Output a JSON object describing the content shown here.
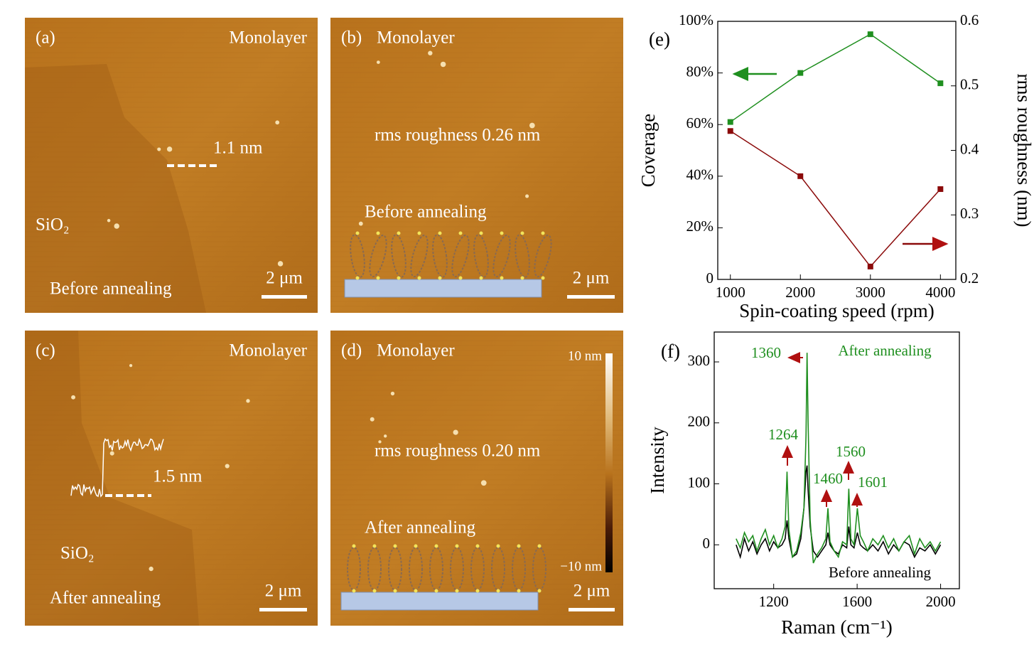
{
  "afm_panels": [
    {
      "label": "(a)",
      "layer": "Monolayer",
      "step_height": "1.1 nm",
      "substrate": "SiO₂",
      "condition": "Before annealing",
      "scale_bar": "2 μm"
    },
    {
      "label": "(b)",
      "layer": "Monolayer",
      "roughness": "rms roughness 0.26 nm",
      "condition": "Before annealing",
      "scale_bar": "2 μm"
    },
    {
      "label": "(c)",
      "layer": "Monolayer",
      "step_height": "1.5 nm",
      "substrate": "SiO₂",
      "condition": "After annealing",
      "scale_bar": "2 μm"
    },
    {
      "label": "(d)",
      "layer": "Monolayer",
      "roughness": "rms roughness 0.20 nm",
      "condition": "After annealing",
      "scale_bar": "2 μm",
      "colorbar": {
        "max": "10 nm",
        "min": "−10 nm"
      }
    }
  ],
  "chart_data": [
    {
      "type": "line",
      "label": "(e)",
      "xlabel": "Spin-coating speed (rpm)",
      "ylabel": "Coverage",
      "y2label": "rms roughness (nm)",
      "x": [
        1000,
        2000,
        3000,
        4000
      ],
      "series": [
        {
          "color": "#1f8f1f",
          "values": [
            61,
            80,
            95,
            76
          ]
        },
        {
          "color": "#8b0a0a",
          "axis": "y2",
          "values": [
            0.43,
            0.36,
            0.22,
            0.34
          ]
        }
      ],
      "xlim": [
        820,
        4220
      ],
      "xticks": [
        1000,
        2000,
        3000,
        4000
      ],
      "ylim": [
        0,
        100
      ],
      "yticks": [
        0,
        {
          "value": 20,
          "label": "20%"
        },
        {
          "value": 40,
          "label": "40%"
        },
        {
          "value": 60,
          "label": "60%"
        },
        {
          "value": 80,
          "label": "80%"
        },
        {
          "value": 100,
          "label": "100%"
        }
      ],
      "y2lim": [
        0.2,
        0.6
      ],
      "y2ticks": [
        0.2,
        0.3,
        0.4,
        0.5,
        0.6
      ]
    },
    {
      "type": "line",
      "label": "(f)",
      "xlabel": "Raman (cm⁻¹)",
      "ylabel": "Intensity",
      "x": [
        1020,
        1040,
        1060,
        1080,
        1100,
        1120,
        1140,
        1160,
        1180,
        1200,
        1220,
        1240,
        1255,
        1264,
        1273,
        1290,
        1310,
        1330,
        1345,
        1355,
        1360,
        1365,
        1375,
        1390,
        1410,
        1430,
        1450,
        1460,
        1470,
        1490,
        1510,
        1530,
        1550,
        1560,
        1570,
        1585,
        1601,
        1615,
        1630,
        1650,
        1675,
        1700,
        1725,
        1750,
        1775,
        1800,
        1825,
        1850,
        1875,
        1900,
        1925,
        1950,
        1975,
        2000
      ],
      "series": [
        {
          "name": "Before annealing",
          "color": "#000000",
          "values": [
            0,
            -20,
            10,
            -10,
            5,
            -15,
            0,
            10,
            -10,
            5,
            -5,
            0,
            10,
            40,
            10,
            -20,
            -15,
            10,
            60,
            120,
            130,
            90,
            30,
            -10,
            -20,
            -10,
            0,
            20,
            0,
            -10,
            -15,
            0,
            -5,
            30,
            0,
            -5,
            20,
            0,
            -5,
            -10,
            0,
            -10,
            5,
            -15,
            0,
            -10,
            5,
            0,
            -20,
            -5,
            -10,
            0,
            -15,
            0
          ]
        },
        {
          "name": "After annealing",
          "color": "#1f8f1f",
          "values": [
            10,
            -5,
            20,
            5,
            15,
            -10,
            10,
            25,
            0,
            15,
            -5,
            10,
            30,
            120,
            25,
            -20,
            -10,
            20,
            60,
            180,
            315,
            200,
            40,
            -30,
            -15,
            -5,
            10,
            60,
            5,
            -10,
            -20,
            5,
            0,
            92,
            10,
            0,
            60,
            15,
            5,
            -10,
            10,
            0,
            15,
            -5,
            10,
            -10,
            5,
            15,
            -15,
            10,
            -5,
            5,
            -10,
            5
          ]
        }
      ],
      "annotations": [
        "1360",
        "1264",
        "1460",
        "1560",
        "1601"
      ],
      "xlim": [
        915,
        2090
      ],
      "xticks": [
        1200,
        1600,
        2000
      ],
      "ylim": [
        -72,
        349
      ],
      "yticks": [
        0,
        100,
        200,
        300
      ]
    }
  ]
}
